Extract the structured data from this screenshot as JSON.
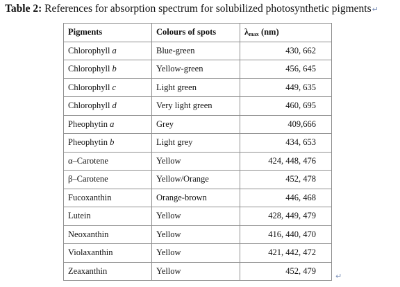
{
  "caption": {
    "label": "Table 2:",
    "text": " References for absorption spectrum for solubilized photosynthetic pigments",
    "mark": "↵"
  },
  "table": {
    "headers": {
      "pigments": "Pigments",
      "colours": "Colours of spots",
      "lambda": "λ",
      "lambda_sub": "max",
      "lambda_unit": " (nm)"
    },
    "rows": [
      {
        "name": "Chlorophyll ",
        "suffix": "a",
        "colour": "Blue-green",
        "lambda": "430, 662"
      },
      {
        "name": "Chlorophyll ",
        "suffix": "b",
        "colour": "Yellow-green",
        "lambda": "456, 645"
      },
      {
        "name": "Chlorophyll ",
        "suffix": "c",
        "colour": "Light green",
        "lambda": "449, 635"
      },
      {
        "name": "Chlorophyll ",
        "suffix": "d",
        "colour": "Very light green",
        "lambda": "460, 695"
      },
      {
        "name": "Pheophytin ",
        "suffix": "a",
        "colour": "Grey",
        "lambda": "409,666"
      },
      {
        "name": "Pheophytin ",
        "suffix": "b",
        "colour": "Light grey",
        "lambda": "434, 653"
      },
      {
        "name": "α–Carotene",
        "suffix": "",
        "colour": "Yellow",
        "lambda": "424, 448, 476"
      },
      {
        "name": "β–Carotene",
        "suffix": "",
        "colour": "Yellow/Orange",
        "lambda": "452, 478"
      },
      {
        "name": "Fucoxanthin",
        "suffix": "",
        "colour": "Orange-brown",
        "lambda": "446, 468"
      },
      {
        "name": "Lutein",
        "suffix": "",
        "colour": "Yellow",
        "lambda": "428, 449, 479"
      },
      {
        "name": "Neoxanthin",
        "suffix": "",
        "colour": "Yellow",
        "lambda": "416, 440, 470"
      },
      {
        "name": "Violaxanthin",
        "suffix": "",
        "colour": "Yellow",
        "lambda": "421, 442, 472"
      },
      {
        "name": "Zeaxanthin",
        "suffix": "",
        "colour": "Yellow",
        "lambda": "452, 479"
      }
    ]
  },
  "end_mark": "↵",
  "colors": {
    "border": "#8f8f8f",
    "paragraph_mark": "#7a8fb8"
  }
}
